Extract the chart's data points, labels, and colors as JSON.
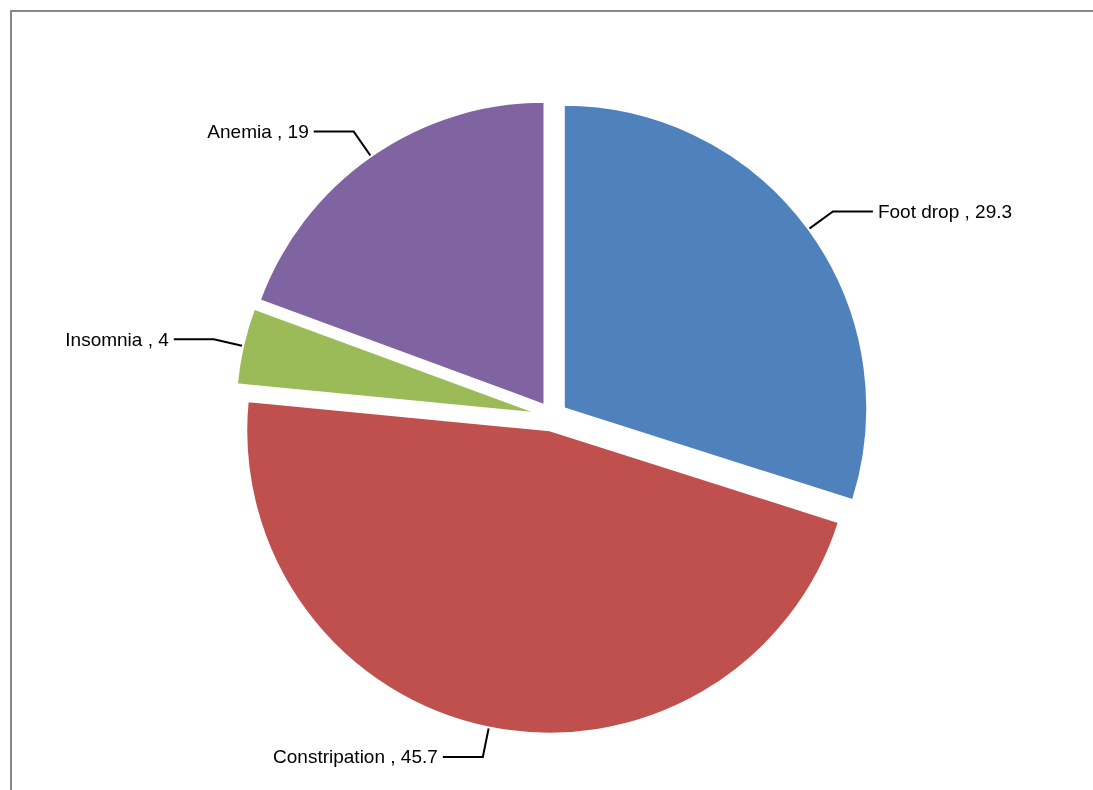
{
  "chart_data": {
    "type": "pie",
    "categories": [
      "Foot drop",
      "Constripation",
      "Insomnia",
      "Anemia"
    ],
    "values": [
      29.3,
      45.7,
      4,
      19
    ],
    "colors": [
      "#4f81bd",
      "#c0504d",
      "#9bbb59",
      "#8064a2"
    ],
    "value_labels": [
      ", 29.3",
      ", 45.7",
      ", 4",
      ", 19"
    ],
    "legend": false
  }
}
